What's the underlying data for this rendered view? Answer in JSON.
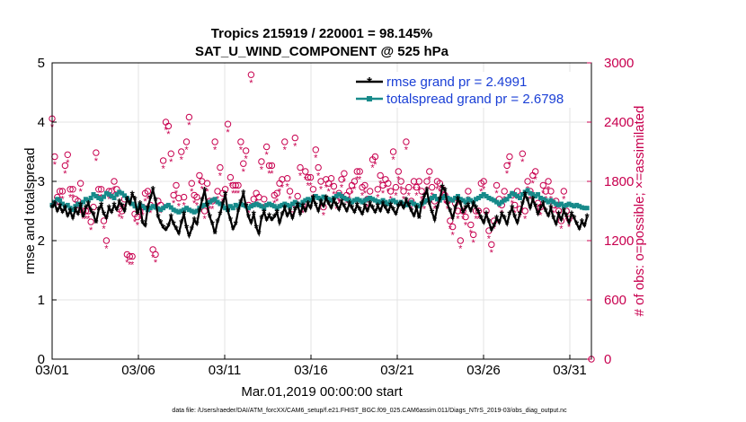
{
  "chart_data": {
    "type": "line",
    "title_line1": "Tropics 215919 / 220001 = 98.145%",
    "title_line2": "SAT_U_WIND_COMPONENT @ 525 hPa",
    "xlabel": "Mar.01,2019 00:00:00 start",
    "ylabel_left": "rmse and totalspread",
    "ylabel_right": "# of obs: o=possible; ×=assimilated",
    "footer": "data file: /Users/raeder/DAI/ATM_forcXX/CAM6_setup/f.e21.FHIST_BGC.f09_025.CAM6assim.011/Diags_NTrS_2019-03/obs_diag_output.nc",
    "x_tick_labels": [
      "03/01",
      "03/06",
      "03/11",
      "03/16",
      "03/21",
      "03/26",
      "03/31"
    ],
    "x_tick_days": [
      0,
      5,
      10,
      15,
      20,
      25,
      30
    ],
    "xlim": [
      0,
      31.25
    ],
    "ylim_left": [
      0,
      5
    ],
    "y_ticks_left": [
      "0",
      "1",
      "2",
      "3",
      "4",
      "5"
    ],
    "ylim_right": [
      0,
      3000
    ],
    "y_ticks_right": [
      "0",
      "600",
      "1200",
      "1800",
      "2400",
      "3000"
    ],
    "grid": true,
    "legend_position": "top-right",
    "colors": {
      "rmse": "#000000",
      "totalspread": "#178a8a",
      "obs": "#c8004f",
      "legend_text": "#1a3fd6"
    },
    "series": [
      {
        "name": "rmse grand pr = 2.4991",
        "axis": "left",
        "values": [
          2.56,
          2.62,
          2.5,
          2.58,
          2.48,
          2.55,
          2.42,
          2.5,
          2.38,
          2.52,
          2.45,
          2.6,
          2.4,
          2.55,
          2.62,
          2.5,
          2.44,
          2.3,
          2.52,
          2.6,
          2.45,
          2.38,
          2.55,
          2.48,
          2.6,
          2.52,
          2.65,
          2.58,
          2.5,
          2.7,
          2.62,
          2.78,
          2.7,
          2.45,
          2.62,
          2.3,
          2.25,
          2.55,
          2.72,
          2.86,
          2.68,
          2.4,
          2.3,
          2.22,
          2.18,
          2.25,
          2.4,
          2.28,
          2.2,
          2.12,
          2.3,
          2.45,
          2.22,
          2.08,
          2.2,
          2.35,
          2.28,
          2.5,
          2.68,
          2.85,
          2.6,
          2.4,
          2.28,
          2.12,
          2.32,
          2.45,
          2.62,
          2.78,
          2.5,
          2.35,
          2.2,
          2.28,
          2.5,
          2.65,
          2.8,
          2.58,
          2.4,
          2.3,
          2.45,
          2.22,
          2.12,
          2.38,
          2.48,
          2.35,
          2.42,
          2.35,
          2.4,
          2.48,
          2.3,
          2.44,
          2.55,
          2.42,
          2.5,
          2.38,
          2.52,
          2.6,
          2.45,
          2.58,
          2.5,
          2.62,
          2.55,
          2.72,
          2.6,
          2.5,
          2.65,
          2.58,
          2.72,
          2.62,
          2.55,
          2.68,
          2.6,
          2.52,
          2.65,
          2.58,
          2.5,
          2.62,
          2.55,
          2.48,
          2.6,
          2.52,
          2.45,
          2.58,
          2.5,
          2.62,
          2.55,
          2.48,
          2.58,
          2.5,
          2.62,
          2.55,
          2.48,
          2.6,
          2.52,
          2.45,
          2.58,
          2.62,
          2.55,
          2.68,
          2.6,
          2.5,
          2.42,
          2.55,
          2.38,
          2.62,
          2.75,
          2.85,
          2.62,
          2.48,
          2.35,
          2.55,
          2.7,
          2.9,
          2.85,
          2.62,
          2.5,
          2.38,
          2.55,
          2.7,
          2.62,
          2.48,
          2.55,
          2.6,
          2.5,
          2.62,
          2.55,
          2.48,
          2.38,
          2.3,
          2.45,
          2.32,
          2.18,
          2.25,
          2.38,
          2.3,
          2.45,
          2.38,
          2.28,
          2.45,
          2.55,
          2.4,
          2.3,
          2.45,
          2.62,
          2.78,
          2.68,
          2.55,
          2.7,
          2.58,
          2.45,
          2.55,
          2.62,
          2.5,
          2.42,
          2.55,
          2.38,
          2.28,
          2.45,
          2.35,
          2.5,
          2.42,
          2.3,
          2.45,
          2.38,
          2.28,
          2.2,
          2.32,
          2.25,
          2.4
        ]
      },
      {
        "name": "totalspread grand pr = 2.6798",
        "axis": "left",
        "values": [
          2.6,
          2.65,
          2.7,
          2.68,
          2.62,
          2.58,
          2.6,
          2.55,
          2.52,
          2.58,
          2.62,
          2.6,
          2.65,
          2.7,
          2.68,
          2.72,
          2.78,
          2.75,
          2.72,
          2.7,
          2.74,
          2.8,
          2.78,
          2.75,
          2.72,
          2.78,
          2.82,
          2.8,
          2.76,
          2.72,
          2.68,
          2.62,
          2.58,
          2.55,
          2.6,
          2.58,
          2.55,
          2.52,
          2.55,
          2.58,
          2.56,
          2.54,
          2.52,
          2.55,
          2.58,
          2.6,
          2.56,
          2.52,
          2.5,
          2.48,
          2.5,
          2.52,
          2.55,
          2.52,
          2.5,
          2.48,
          2.5,
          2.55,
          2.58,
          2.6,
          2.62,
          2.65,
          2.68,
          2.7,
          2.65,
          2.62,
          2.58,
          2.55,
          2.52,
          2.58,
          2.55,
          2.6,
          2.58,
          2.62,
          2.6,
          2.58,
          2.55,
          2.58,
          2.6,
          2.62,
          2.6,
          2.58,
          2.55,
          2.6,
          2.62,
          2.6,
          2.58,
          2.55,
          2.58,
          2.6,
          2.62,
          2.6,
          2.58,
          2.62,
          2.65,
          2.62,
          2.6,
          2.65,
          2.68,
          2.7,
          2.68,
          2.72,
          2.75,
          2.72,
          2.7,
          2.74,
          2.72,
          2.7,
          2.68,
          2.72,
          2.75,
          2.78,
          2.75,
          2.72,
          2.7,
          2.68,
          2.65,
          2.68,
          2.7,
          2.68,
          2.65,
          2.68,
          2.7,
          2.72,
          2.7,
          2.68,
          2.66,
          2.65,
          2.68,
          2.65,
          2.62,
          2.66,
          2.68,
          2.65,
          2.62,
          2.65,
          2.62,
          2.6,
          2.62,
          2.65,
          2.62,
          2.6,
          2.58,
          2.62,
          2.65,
          2.68,
          2.7,
          2.72,
          2.75,
          2.7,
          2.68,
          2.72,
          2.75,
          2.72,
          2.7,
          2.68,
          2.72,
          2.75,
          2.7,
          2.68,
          2.65,
          2.7,
          2.68,
          2.65,
          2.7,
          2.72,
          2.75,
          2.78,
          2.75,
          2.72,
          2.7,
          2.68,
          2.65,
          2.62,
          2.65,
          2.68,
          2.7,
          2.75,
          2.8,
          2.78,
          2.75,
          2.72,
          2.78,
          2.82,
          2.85,
          2.8,
          2.78,
          2.75,
          2.78,
          2.72,
          2.7,
          2.68,
          2.65,
          2.68,
          2.65,
          2.62,
          2.6,
          2.62,
          2.58,
          2.6,
          2.62,
          2.6,
          2.58,
          2.6,
          2.58,
          2.56,
          2.55,
          2.55
        ]
      },
      {
        "name": "obs possible",
        "axis": "right",
        "values": [
          2435,
          2050,
          1640,
          1700,
          1700,
          1960,
          2070,
          1720,
          1720,
          1620,
          1600,
          1780,
          1500,
          1500,
          1500,
          1390,
          1540,
          2090,
          1720,
          1720,
          1400,
          1200,
          1700,
          1700,
          1800,
          1720,
          1520,
          1500,
          1620,
          1060,
          1040,
          1040,
          1470,
          1440,
          1500,
          1540,
          1680,
          1700,
          1560,
          1110,
          1060,
          1600,
          1560,
          2010,
          2400,
          2360,
          2080,
          1660,
          1760,
          1630,
          2100,
          1640,
          2200,
          2450,
          1780,
          1660,
          1640,
          1860,
          1800,
          1500,
          1780,
          1600,
          1600,
          2200,
          1700,
          1940,
          1680,
          1720,
          2380,
          1840,
          1760,
          1760,
          1760,
          2200,
          1980,
          2110,
          1560,
          2880,
          1620,
          1680,
          1640,
          2000,
          1620,
          2150,
          1960,
          1960,
          1660,
          1680,
          1780,
          1820,
          2200,
          1830,
          1700,
          1520,
          2240,
          1650,
          1940,
          1560,
          1900,
          1840,
          1840,
          1720,
          2120,
          1940,
          1800,
          1540,
          1820,
          1780,
          1830,
          1750,
          1600,
          1680,
          1820,
          1880,
          1660,
          1700,
          1760,
          1800,
          1900,
          1900,
          1740,
          1760,
          1620,
          1700,
          2020,
          2050,
          1720,
          1860,
          1760,
          1820,
          1780,
          1700,
          2100,
          1740,
          1900,
          1800,
          1700,
          2200,
          1740,
          1600,
          1800,
          1740,
          1800,
          1700,
          1600,
          1800,
          1900,
          1740,
          1600,
          1800,
          1780,
          1720,
          1660,
          1600,
          1400,
          1340,
          1580,
          1500,
          1200,
          1500,
          1440,
          1700,
          1360,
          1260,
          1500,
          1500,
          1780,
          1800,
          1500,
          1300,
          1160,
          1400,
          1760,
          1620,
          1560,
          1700,
          1960,
          2050,
          1660,
          1560,
          1700,
          1520,
          2080,
          1500,
          1800,
          1700,
          1860,
          1900,
          1580,
          1540,
          1760,
          1700,
          1800,
          1700,
          1560,
          1600,
          1500,
          1400,
          1700,
          1500,
          1420
        ]
      },
      {
        "name": "obs assimilated",
        "axis": "right",
        "values": [
          2420,
          2035,
          1625,
          1685,
          1685,
          1945,
          2055,
          1705,
          1705,
          1605,
          1585,
          1765,
          1485,
          1485,
          1485,
          1375,
          1525,
          2075,
          1705,
          1705,
          1385,
          1185,
          1685,
          1685,
          1785,
          1705,
          1505,
          1485,
          1605,
          1045,
          1025,
          1025,
          1455,
          1425,
          1485,
          1525,
          1665,
          1685,
          1545,
          1095,
          1045,
          1585,
          1545,
          1995,
          2385,
          2345,
          2065,
          1645,
          1745,
          1615,
          2085,
          1625,
          2185,
          2435,
          1765,
          1645,
          1625,
          1845,
          1785,
          1485,
          1765,
          1585,
          1585,
          2185,
          1685,
          1925,
          1665,
          1705,
          2365,
          1825,
          1745,
          1745,
          1745,
          2185,
          1965,
          2095,
          1545,
          2865,
          1605,
          1665,
          1625,
          1985,
          1605,
          2135,
          1945,
          1945,
          1645,
          1665,
          1765,
          1805,
          2185,
          1815,
          1685,
          1505,
          2225,
          1635,
          1925,
          1545,
          1885,
          1825,
          1825,
          1705,
          2105,
          1925,
          1785,
          1525,
          1805,
          1765,
          1815,
          1735,
          1585,
          1665,
          1805,
          1865,
          1645,
          1685,
          1745,
          1785,
          1885,
          1885,
          1725,
          1745,
          1605,
          1685,
          2005,
          2035,
          1705,
          1845,
          1745,
          1805,
          1765,
          1685,
          2085,
          1725,
          1885,
          1785,
          1685,
          2185,
          1725,
          1585,
          1785,
          1725,
          1785,
          1685,
          1585,
          1785,
          1885,
          1725,
          1585,
          1785,
          1765,
          1705,
          1645,
          1585,
          1385,
          1325,
          1565,
          1485,
          1185,
          1485,
          1425,
          1685,
          1345,
          1245,
          1485,
          1485,
          1765,
          1785,
          1485,
          1285,
          1145,
          1385,
          1745,
          1605,
          1545,
          1685,
          1945,
          2035,
          1645,
          1545,
          1685,
          1505,
          2065,
          1485,
          1785,
          1685,
          1845,
          1885,
          1565,
          1525,
          1745,
          1685,
          1785,
          1685,
          1545,
          1585,
          1485,
          1385,
          1685,
          1485,
          1405
        ]
      }
    ]
  }
}
